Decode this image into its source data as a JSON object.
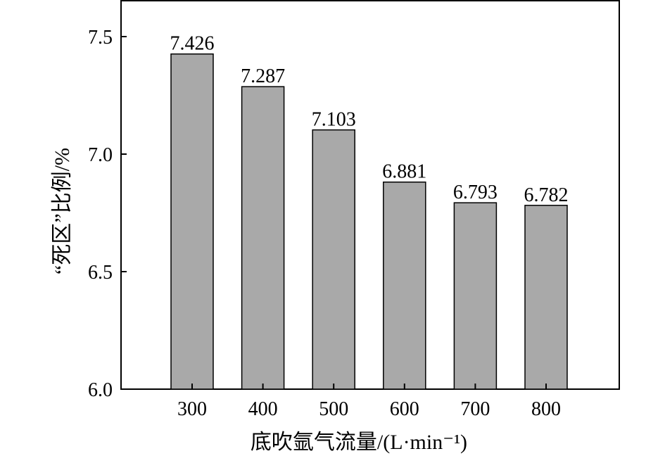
{
  "chart_data": {
    "type": "bar",
    "title": "",
    "categories": [
      "300",
      "400",
      "500",
      "600",
      "700",
      "800"
    ],
    "values": [
      7.426,
      7.287,
      7.103,
      6.881,
      6.793,
      6.782
    ],
    "data_labels": [
      "7.426",
      "7.287",
      "7.103",
      "6.881",
      "6.793",
      "6.782"
    ],
    "xlabel": "底吹氩气流量/(L·min⁻¹)",
    "ylabel": "“死区”比例/%",
    "ylim": [
      6.0,
      7.65
    ],
    "yticks": [
      6.0,
      6.5,
      7.0,
      7.5
    ],
    "ytick_labels": [
      "6.0",
      "6.5",
      "7.0",
      "7.5"
    ],
    "grid": false,
    "legend": "none",
    "bar_color": "#a9a9a9"
  }
}
